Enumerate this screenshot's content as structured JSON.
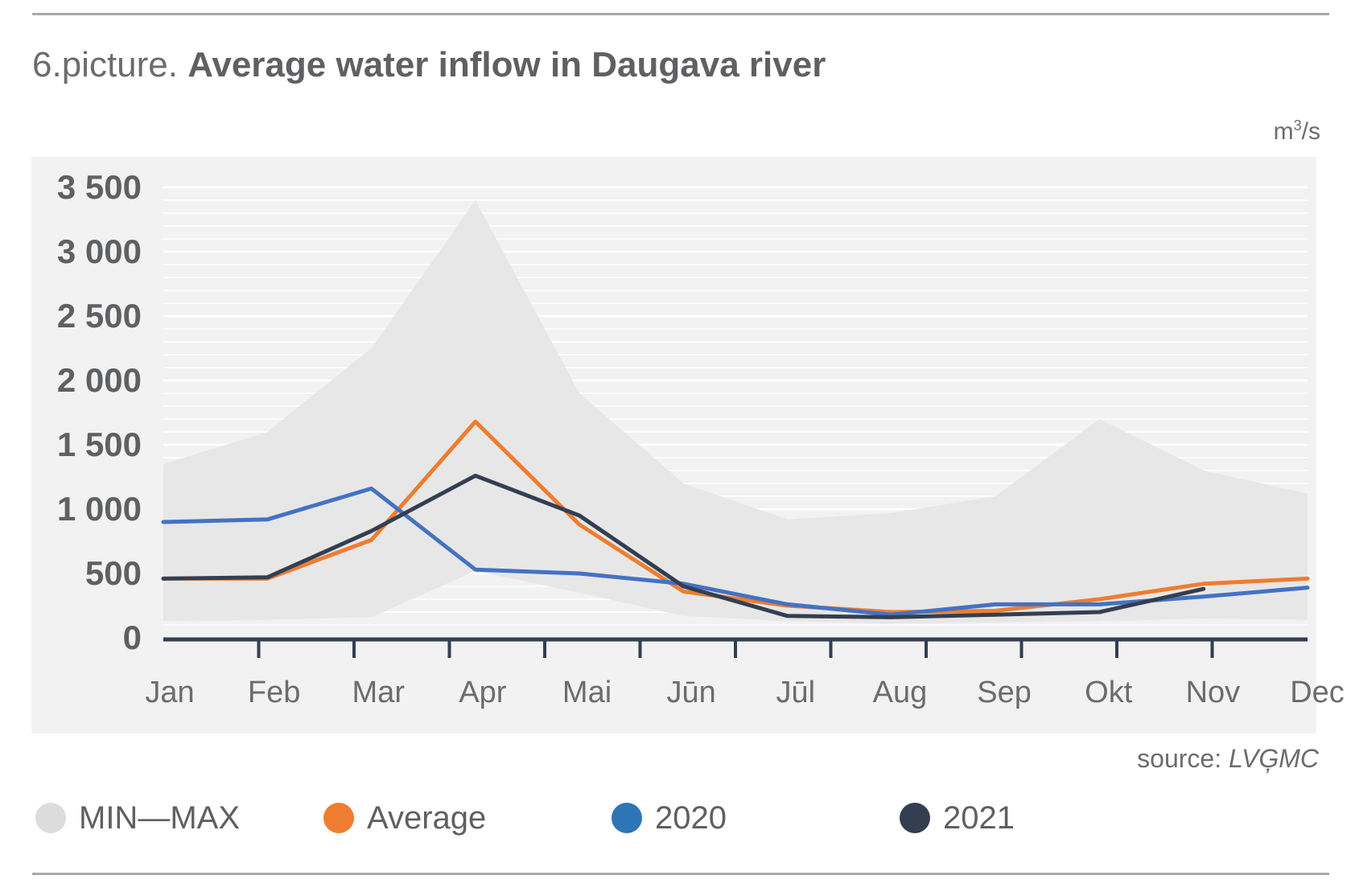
{
  "title": {
    "prefix": "6.picture.",
    "main": "Average water inflow in Daugava river"
  },
  "unit": {
    "base": "m",
    "exp": "3",
    "suffix": "/s"
  },
  "source": {
    "label": "source:",
    "name": "LVĢMC"
  },
  "legend": [
    {
      "label": "MIN—MAX",
      "color": "#dcdcdc"
    },
    {
      "label": "Average",
      "color": "#ee7d31"
    },
    {
      "label": "2020",
      "color": "#2e75b6"
    },
    {
      "label": "2021",
      "color": "#333f50"
    }
  ],
  "colors": {
    "band": "#e7e6e6",
    "average": "#ee7d31",
    "y2020": "#4472c4",
    "y2021": "#333f50",
    "axis": "#333f50"
  },
  "chart_data": {
    "type": "line",
    "categories": [
      "Jan",
      "Feb",
      "Mar",
      "Apr",
      "Mai",
      "Jūn",
      "Jūl",
      "Aug",
      "Sep",
      "Okt",
      "Nov",
      "Dec"
    ],
    "y_ticks": [
      "0",
      "500",
      "1 000",
      "1 500",
      "2 000",
      "2 500",
      "3 000",
      "3 500"
    ],
    "ylim": [
      0,
      3500
    ],
    "band": {
      "name": "MIN—MAX",
      "min": [
        130,
        140,
        160,
        520,
        350,
        170,
        130,
        110,
        120,
        130,
        150,
        140
      ],
      "max": [
        1350,
        1600,
        2250,
        3400,
        1900,
        1200,
        920,
        970,
        1100,
        1700,
        1300,
        1120
      ]
    },
    "series": [
      {
        "name": "Average",
        "values": [
          460,
          460,
          760,
          1680,
          880,
          360,
          250,
          200,
          210,
          300,
          420,
          460
        ]
      },
      {
        "name": "2020",
        "values": [
          900,
          920,
          1160,
          530,
          500,
          420,
          260,
          180,
          260,
          260,
          320,
          390
        ]
      },
      {
        "name": "2021",
        "values": [
          460,
          470,
          830,
          1260,
          950,
          400,
          170,
          160,
          180,
          200,
          380,
          null
        ]
      }
    ]
  }
}
